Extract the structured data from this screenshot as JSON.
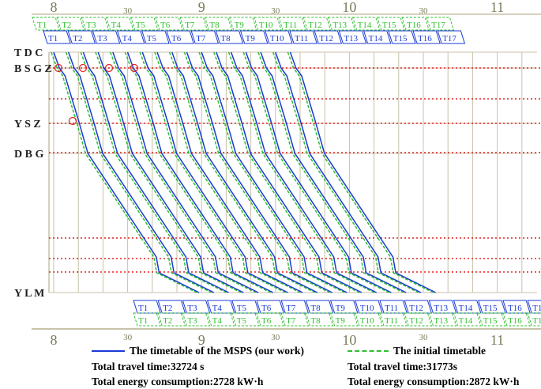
{
  "chart_data": {
    "type": "line",
    "stations": [
      "T D C",
      "B S G Z",
      "Y S Z",
      "D B G",
      "Y L M"
    ],
    "time_axis": {
      "hour_labels": [
        "8",
        "9",
        "10",
        "11"
      ],
      "half_hour_label": "30",
      "range": [
        "7:58",
        "11:12"
      ]
    },
    "train_labels": [
      "T1",
      "T2",
      "T3",
      "T4",
      "T5",
      "T6",
      "T7",
      "T8",
      "T9",
      "T10",
      "T11",
      "T12",
      "T13",
      "T14",
      "T15",
      "T16",
      "T17"
    ],
    "series": [
      {
        "name": "The timetable of the MSPS (our work)",
        "color": "#1a3ad6",
        "style": "solid",
        "departures_tdc": [
          "8:00",
          "8:06",
          "8:12",
          "8:18",
          "8:24",
          "8:30",
          "8:36",
          "8:42",
          "8:48",
          "8:54",
          "9:00",
          "9:06",
          "9:12",
          "9:18",
          "9:24",
          "9:30",
          "9:36"
        ],
        "arrivals_ylm": [
          "8:59",
          "9:05",
          "9:11",
          "9:17",
          "9:23",
          "9:29",
          "9:35",
          "9:41",
          "9:47",
          "9:53",
          "9:59",
          "10:05",
          "10:11",
          "10:17",
          "10:23",
          "10:29",
          "10:35"
        ]
      },
      {
        "name": "The initial timetable",
        "color": "#2fbf2f",
        "style": "dashed",
        "departures_tdc": [
          "7:59",
          "8:05",
          "8:11",
          "8:17",
          "8:23",
          "8:29",
          "8:35",
          "8:41",
          "8:47",
          "8:53",
          "8:59",
          "9:05",
          "9:11",
          "9:17",
          "9:23",
          "9:29",
          "9:35"
        ],
        "arrivals_ylm": [
          "8:58",
          "9:04",
          "9:10",
          "9:16",
          "9:22",
          "9:28",
          "9:34",
          "9:40",
          "9:46",
          "9:52",
          "9:58",
          "10:04",
          "10:10",
          "10:16",
          "10:22",
          "10:28",
          "10:34"
        ]
      }
    ],
    "highlighted_points": 5,
    "colors": {
      "ours": "#1a3ad6",
      "initial": "#2fbf2f",
      "limit_lines": "#e02020",
      "grid": "#c8c2a8",
      "highlight": "#e02020"
    }
  },
  "legend": {
    "ours": {
      "label": "The timetable of the MSPS (our work)",
      "travel_time": "Total travel time:32724 s",
      "energy": "Total energy consumption:2728 kW·h"
    },
    "initial": {
      "label": "The initial timetable",
      "travel_time": "Total travel time:31773s",
      "energy": "Total energy consumption:2872 kW·h"
    }
  }
}
